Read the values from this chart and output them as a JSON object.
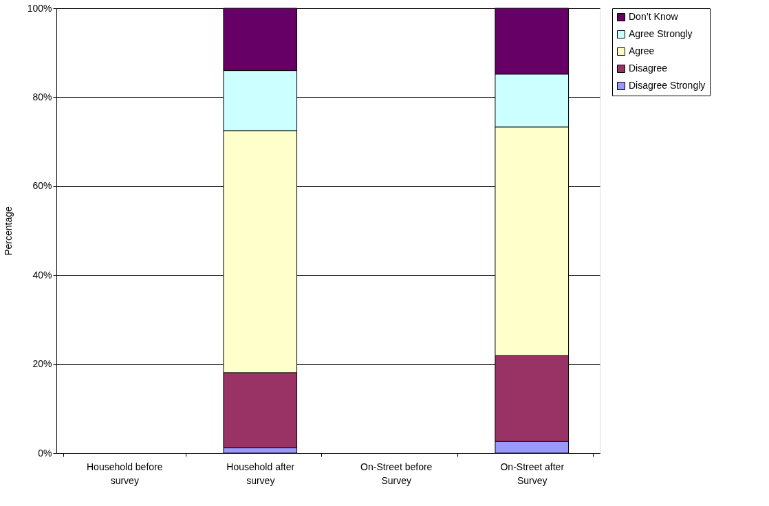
{
  "chart_data": {
    "type": "bar",
    "stacked": true,
    "ylabel": "Percentage",
    "categories": [
      "Household before survey",
      "Household after survey",
      "On-Street before Survey",
      "On-Street after Survey"
    ],
    "series": [
      {
        "name": "Disagree Strongly",
        "color": "#9999ff",
        "values": [
          null,
          1.2,
          null,
          2.6
        ]
      },
      {
        "name": "Disagree",
        "color": "#993366",
        "values": [
          null,
          16.9,
          null,
          19.3
        ]
      },
      {
        "name": "Agree",
        "color": "#ffffcc",
        "values": [
          null,
          54.4,
          null,
          51.4
        ]
      },
      {
        "name": "Agree Strongly",
        "color": "#ccffff",
        "values": [
          null,
          13.5,
          null,
          11.9
        ]
      },
      {
        "name": "Don’t Know",
        "color": "#660066",
        "values": [
          null,
          14.0,
          null,
          14.8
        ]
      }
    ],
    "ylim": [
      0,
      100
    ],
    "yticks": [
      {
        "value": 0,
        "label": "0%"
      },
      {
        "value": 20,
        "label": "20%"
      },
      {
        "value": 40,
        "label": "40%"
      },
      {
        "value": 60,
        "label": "60%"
      },
      {
        "value": 80,
        "label": "80%"
      },
      {
        "value": 100,
        "label": "100%"
      }
    ],
    "grid": "y",
    "legend": "right"
  }
}
